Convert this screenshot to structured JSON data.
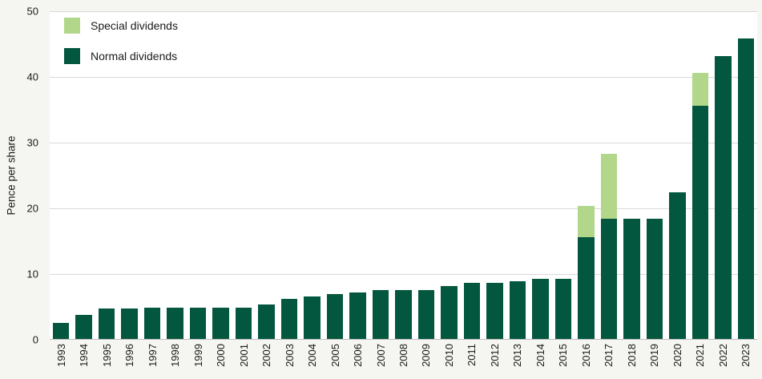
{
  "chart_data": {
    "type": "bar",
    "stacked": true,
    "title": "",
    "xlabel": "",
    "ylabel": "Pence per share",
    "ylim": [
      0,
      50
    ],
    "yticks": [
      0,
      10,
      20,
      30,
      40,
      50
    ],
    "grid": true,
    "legend_position": "top-left",
    "categories": [
      "1993",
      "1994",
      "1995",
      "1996",
      "1997",
      "1998",
      "1999",
      "2000",
      "2001",
      "2002",
      "2003",
      "2004",
      "2005",
      "2006",
      "2007",
      "2008",
      "2009",
      "2010",
      "2011",
      "2012",
      "2013",
      "2014",
      "2015",
      "2016",
      "2017",
      "2018",
      "2019",
      "2020",
      "2021",
      "2022",
      "2023"
    ],
    "series": [
      {
        "name": "Normal dividends",
        "color": "#04573f",
        "values": [
          2.5,
          3.7,
          4.6,
          4.6,
          4.8,
          4.8,
          4.8,
          4.8,
          4.8,
          5.3,
          6.1,
          6.5,
          6.8,
          7.1,
          7.5,
          7.5,
          7.5,
          8.1,
          8.5,
          8.5,
          8.8,
          9.2,
          9.2,
          15.5,
          18.3,
          18.3,
          18.3,
          22.4,
          35.6,
          43.2,
          45.8
        ]
      },
      {
        "name": "Special dividends",
        "color": "#b2d78a",
        "values": [
          0,
          0,
          0,
          0,
          0,
          0,
          0,
          0,
          0,
          0,
          0,
          0,
          0,
          0,
          0,
          0,
          0,
          0,
          0,
          0,
          0,
          0,
          0,
          4.8,
          9.9,
          0,
          0,
          0,
          5.0,
          0,
          0
        ]
      }
    ]
  },
  "colors": {
    "figure_background": "#f5f5f2",
    "plot_background": "#ffffff",
    "gridline": "#d9d9d9",
    "axis_line": "#bdbdbd",
    "text": "#1a1a1a",
    "normal_dividends": "#04573f",
    "special_dividends": "#b2d78a"
  }
}
